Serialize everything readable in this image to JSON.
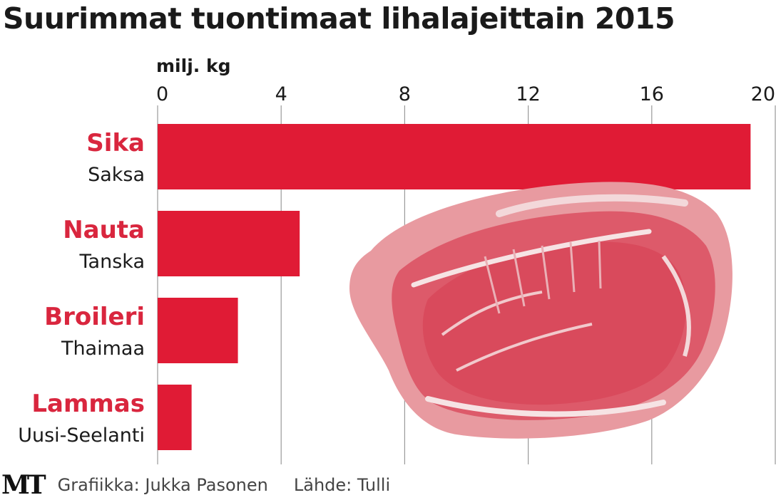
{
  "title": "Suurimmat tuontimaat lihalajeittain 2015",
  "unit_label": "milj. kg",
  "footer": {
    "logo": "MT",
    "credit": "Grafiikka: Jukka Pasonen",
    "source": "Lähde: Tulli"
  },
  "colors": {
    "bar": "#e01b35",
    "category_label": "#d9263e",
    "grid": "#9a9a9a",
    "text": "#1a1a1a"
  },
  "illustration": "raw-meat-cut-image",
  "chart_data": {
    "type": "bar",
    "orientation": "horizontal",
    "categories": [
      "Sika",
      "Nauta",
      "Broileri",
      "Lammas"
    ],
    "sublabels": [
      "Saksa",
      "Tanska",
      "Thaimaa",
      "Uusi-Seelanti"
    ],
    "values": [
      19.2,
      4.6,
      2.6,
      1.1
    ],
    "xlim": [
      0,
      20
    ],
    "xticks": [
      "0",
      "4",
      "8",
      "12",
      "16",
      "20"
    ],
    "xlabel": "milj. kg",
    "grid": true,
    "axis_position": "top"
  }
}
